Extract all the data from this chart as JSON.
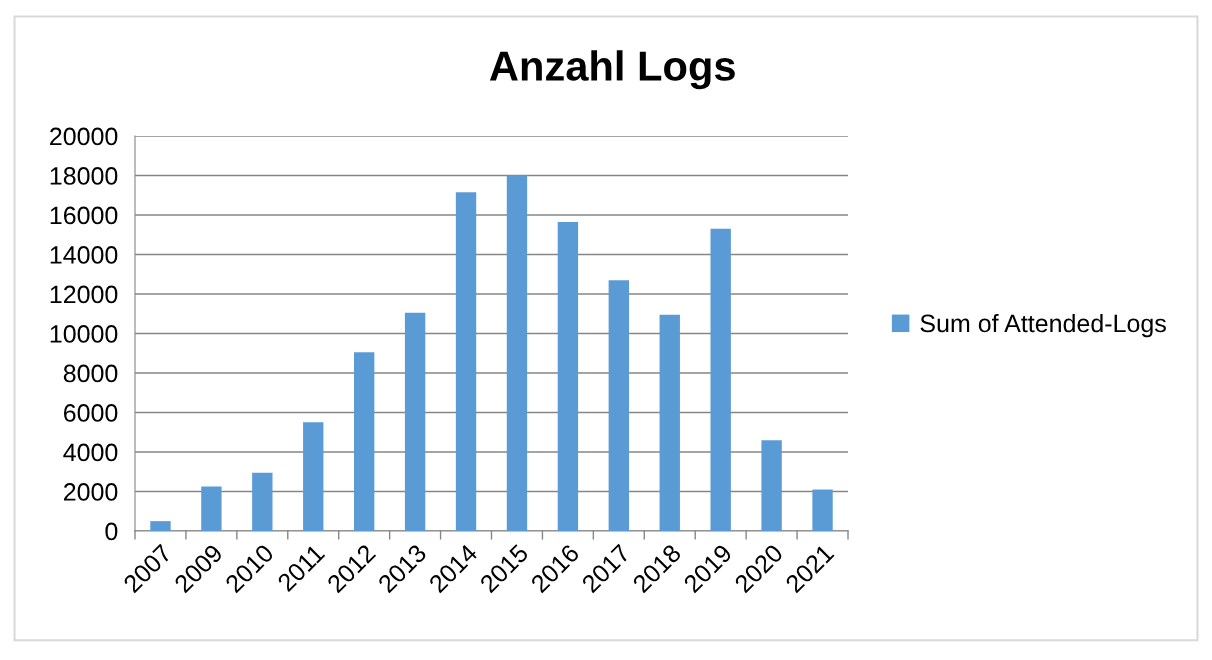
{
  "chart_data": {
    "type": "bar",
    "title": "Anzahl Logs",
    "categories": [
      "2007",
      "2009",
      "2010",
      "2011",
      "2012",
      "2013",
      "2014",
      "2015",
      "2016",
      "2017",
      "2018",
      "2019",
      "2020",
      "2021"
    ],
    "series": [
      {
        "name": "Sum of Attended-Logs",
        "color": "#5b9bd5",
        "values": [
          500,
          2250,
          2950,
          5500,
          9050,
          11050,
          17150,
          18000,
          15650,
          12700,
          10950,
          15300,
          4600,
          2100
        ]
      }
    ],
    "ylim": [
      0,
      20000
    ],
    "yticks": [
      0,
      2000,
      4000,
      6000,
      8000,
      10000,
      12000,
      14000,
      16000,
      18000,
      20000
    ],
    "grid": "y",
    "legend": "right"
  }
}
